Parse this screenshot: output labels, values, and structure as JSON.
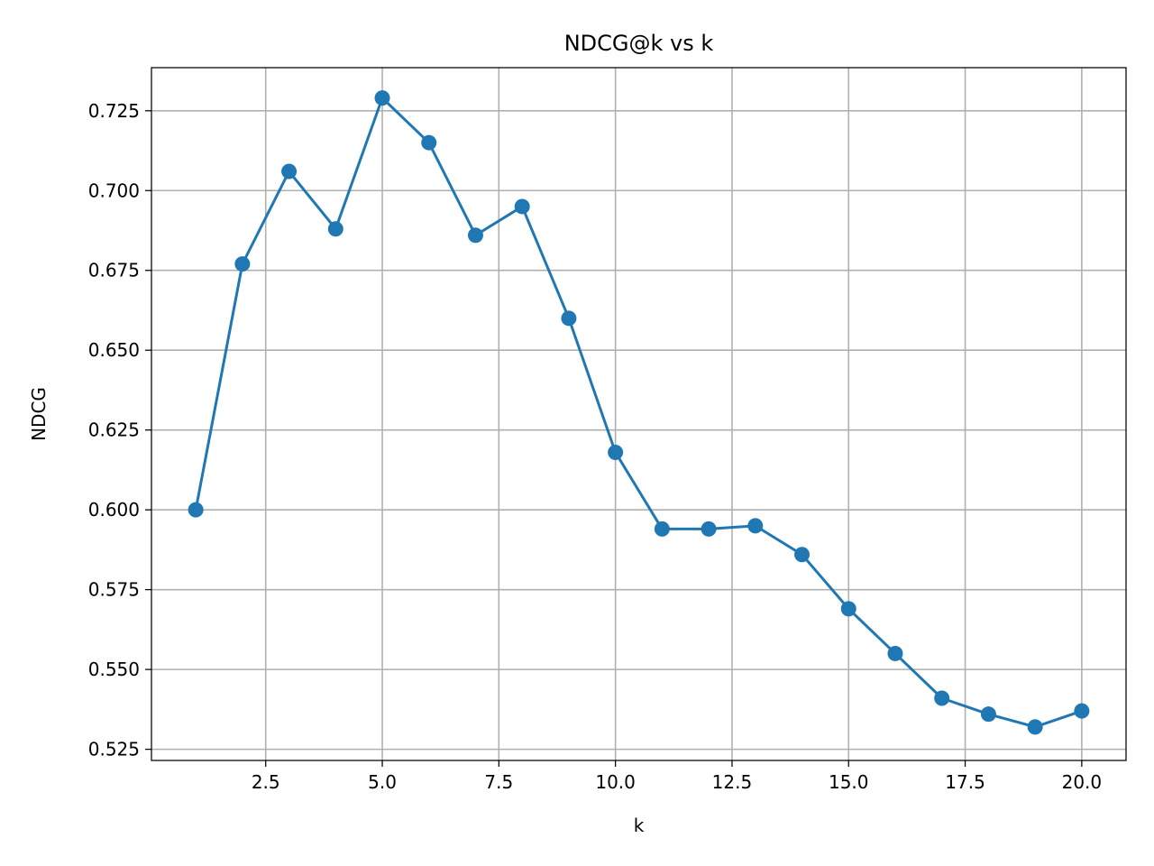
{
  "chart_data": {
    "type": "line",
    "title": "NDCG@k vs k",
    "xlabel": "k",
    "ylabel": "NDCG",
    "xlim": [
      0.05,
      20.95
    ],
    "ylim": [
      0.5215,
      0.7385
    ],
    "grid": true,
    "x_ticks": [
      2.5,
      5.0,
      7.5,
      10.0,
      12.5,
      15.0,
      17.5,
      20.0
    ],
    "x_tick_labels": [
      "2.5",
      "5.0",
      "7.5",
      "10.0",
      "12.5",
      "15.0",
      "17.5",
      "20.0"
    ],
    "y_ticks": [
      0.525,
      0.55,
      0.575,
      0.6,
      0.625,
      0.65,
      0.675,
      0.7,
      0.725
    ],
    "y_tick_labels": [
      "0.525",
      "0.550",
      "0.575",
      "0.600",
      "0.625",
      "0.650",
      "0.675",
      "0.700",
      "0.725"
    ],
    "series": [
      {
        "color": "#1f77b4",
        "marker": "circle",
        "x": [
          1,
          2,
          3,
          4,
          5,
          6,
          7,
          8,
          9,
          10,
          11,
          12,
          13,
          14,
          15,
          16,
          17,
          18,
          19,
          20
        ],
        "y": [
          0.6,
          0.677,
          0.706,
          0.688,
          0.729,
          0.715,
          0.686,
          0.695,
          0.66,
          0.618,
          0.594,
          0.594,
          0.595,
          0.586,
          0.569,
          0.555,
          0.541,
          0.536,
          0.532,
          0.537
        ]
      }
    ]
  }
}
